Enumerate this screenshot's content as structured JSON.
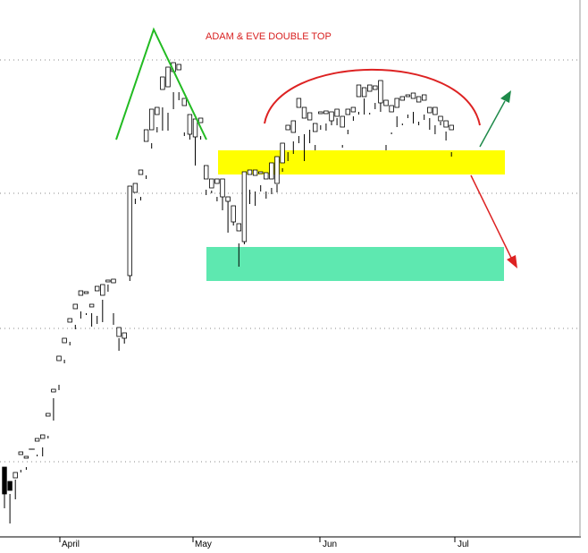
{
  "chart_data": {
    "type": "candlestick",
    "title": "ADAM & EVE DOUBLE TOP",
    "xlabel": "",
    "ylabel": "",
    "x_ticks": [
      "April",
      "May",
      "Jun",
      "Jul"
    ],
    "y_axis_labels_visible": false,
    "gridlines": "dotted horizontal",
    "colors": {
      "title": "#d82020",
      "adam_peak": "#22bb22",
      "eve_arc": "#dd2222",
      "resistance_zone": "#ffff00",
      "target_zone": "#5ee8b0",
      "breakout_up_arrow": "#1e8a4a",
      "breakdown_arrow": "#dd2222",
      "bullish_candle": "#ffffff",
      "bearish_candle": "#000000"
    },
    "annotations": [
      {
        "name": "adam-peak",
        "shape": "inverted V",
        "color": "green"
      },
      {
        "name": "eve-top",
        "shape": "rounded arc",
        "color": "red"
      },
      {
        "name": "neckline-zone",
        "shape": "band",
        "color": "yellow"
      },
      {
        "name": "target-zone",
        "shape": "band",
        "color": "aquamarine"
      },
      {
        "name": "upside-arrow",
        "direction": "up-right",
        "color": "green"
      },
      {
        "name": "downside-arrow",
        "direction": "down-right",
        "color": "red"
      }
    ],
    "series": [
      {
        "values": [
          [
            0,
            522,
            552,
            542,
            568
          ],
          [
            1,
            538,
            548,
            552,
            585
          ],
          [
            2,
            534,
            528,
            536,
            558
          ],
          [
            3,
            508,
            505,
            525,
            528
          ],
          [
            4,
            512,
            510,
            522,
            525
          ],
          [
            5,
            503,
            502,
            522,
            522
          ],
          [
            6,
            493,
            490,
            508,
            510
          ],
          [
            7,
            490,
            486,
            500,
            510
          ],
          [
            8,
            465,
            462,
            487,
            490
          ],
          [
            9,
            438,
            435,
            445,
            470
          ],
          [
            10,
            403,
            398,
            430,
            436
          ],
          [
            11,
            383,
            378,
            402,
            406
          ],
          [
            12,
            360,
            356,
            382,
            386
          ],
          [
            13,
            345,
            340,
            363,
            368
          ],
          [
            14,
            330,
            325,
            348,
            356
          ],
          [
            15,
            328,
            326,
            350,
            352
          ],
          [
            16,
            343,
            340,
            350,
            365
          ],
          [
            17,
            325,
            320,
            353,
            362
          ],
          [
            18,
            330,
            318,
            335,
            360
          ],
          [
            19,
            315,
            313,
            318,
            326
          ],
          [
            20,
            316,
            312,
            350,
            363
          ],
          [
            21,
            376,
            366,
            378,
            392
          ],
          [
            22,
            378,
            372,
            376,
            384
          ],
          [
            23,
            308,
            208,
            308,
            314
          ],
          [
            24,
            215,
            205,
            222,
            228
          ],
          [
            25,
            195,
            190,
            220,
            224
          ],
          [
            26,
            158,
            145,
            196,
            200
          ],
          [
            27,
            145,
            122,
            160,
            166
          ],
          [
            28,
            128,
            120,
            142,
            148
          ],
          [
            29,
            100,
            86,
            120,
            146
          ],
          [
            30,
            97,
            75,
            126,
            146
          ],
          [
            31,
            80,
            70,
            103,
            122
          ],
          [
            32,
            78,
            72,
            103,
            112
          ],
          [
            33,
            118,
            110,
            148,
            152
          ],
          [
            34,
            150,
            128,
            138,
            156
          ],
          [
            35,
            153,
            133,
            136,
            185
          ],
          [
            36,
            137,
            132,
            152,
            156
          ],
          [
            37,
            200,
            185,
            212,
            218
          ],
          [
            38,
            210,
            200,
            213,
            216
          ],
          [
            39,
            205,
            200,
            220,
            225
          ],
          [
            40,
            220,
            200,
            218,
            235
          ],
          [
            41,
            225,
            220,
            225,
            260
          ],
          [
            42,
            248,
            230,
            248,
            252
          ],
          [
            43,
            258,
            250,
            272,
            298
          ],
          [
            44,
            270,
            192,
            270,
            273
          ],
          [
            45,
            195,
            190,
            212,
            228
          ],
          [
            46,
            196,
            190,
            214,
            230
          ],
          [
            47,
            194,
            192,
            207,
            214
          ],
          [
            48,
            200,
            193,
            214,
            222
          ],
          [
            49,
            200,
            182,
            210,
            217
          ],
          [
            50,
            205,
            175,
            206,
            215
          ],
          [
            51,
            182,
            160,
            188,
            192
          ],
          [
            52,
            145,
            140,
            170,
            180
          ],
          [
            53,
            148,
            135,
            158,
            172
          ],
          [
            54,
            120,
            110,
            152,
            160
          ],
          [
            55,
            132,
            120,
            150,
            180
          ],
          [
            56,
            134,
            126,
            145,
            160
          ],
          [
            57,
            147,
            138,
            162,
            168
          ],
          [
            58,
            127,
            125,
            140,
            145
          ],
          [
            59,
            127,
            124,
            138,
            146
          ],
          [
            60,
            135,
            125,
            130,
            140
          ],
          [
            61,
            130,
            122,
            132,
            140
          ],
          [
            62,
            142,
            130,
            162,
            165
          ],
          [
            63,
            128,
            122,
            145,
            150
          ],
          [
            64,
            125,
            120,
            130,
            135
          ],
          [
            65,
            108,
            95,
            125,
            128
          ],
          [
            66,
            108,
            98,
            110,
            128
          ],
          [
            67,
            102,
            95,
            126,
            128
          ],
          [
            68,
            100,
            96,
            115,
            122
          ],
          [
            69,
            115,
            90,
            115,
            125
          ],
          [
            70,
            118,
            112,
            162,
            168
          ],
          [
            71,
            125,
            118,
            148,
            150
          ],
          [
            72,
            120,
            110,
            130,
            142
          ],
          [
            73,
            112,
            108,
            138,
            140
          ],
          [
            74,
            108,
            106,
            128,
            132
          ],
          [
            75,
            110,
            104,
            125,
            138
          ],
          [
            76,
            114,
            108,
            136,
            140
          ],
          [
            77,
            112,
            106,
            128,
            134
          ],
          [
            78,
            126,
            120,
            132,
            145
          ],
          [
            79,
            128,
            120,
            140,
            150
          ],
          [
            80,
            135,
            130,
            136,
            140
          ],
          [
            81,
            142,
            135,
            147,
            157
          ],
          [
            82,
            145,
            140,
            170,
            175
          ]
        ]
      }
    ]
  }
}
